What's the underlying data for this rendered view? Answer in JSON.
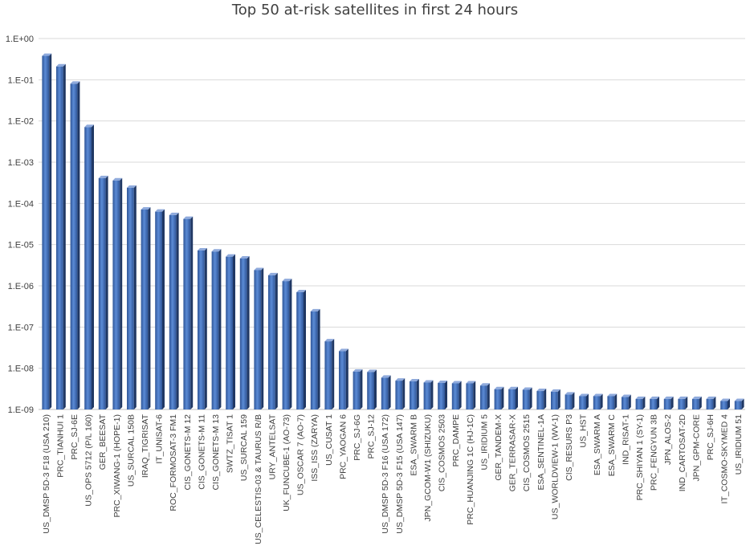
{
  "chart_data": {
    "type": "bar",
    "title": "Top 50 at-risk satellites in first 24 hours",
    "xlabel": "",
    "ylabel": "",
    "yscale": "log",
    "ylim": [
      1e-09,
      1
    ],
    "yticks": [
      "1.E+00",
      "1.E-01",
      "1.E-02",
      "1.E-03",
      "1.E-04",
      "1.E-05",
      "1.E-06",
      "1.E-07",
      "1.E-08",
      "1.E-09"
    ],
    "grid": true,
    "legend": "none",
    "bar_color": "#4472c4",
    "categories": [
      "US_DMSP 5D-3 F18 (USA 210)",
      "PRC_TIANHUI 1",
      "PRC_SJ-6E",
      "US_OPS 5712 (P/L 160)",
      "GER_BEESAT",
      "PRC_XIWANG-1 (HOPE-1)",
      "US_SURCAL 150B",
      "IRAQ_TIGRISAT",
      "IT_UNISAT-6",
      "ROC_FORMOSAT-3 FM1",
      "CIS_GONETS-M 12",
      "CIS_GONETS-M 11",
      "CIS_GONETS-M 13",
      "SWTZ_TISAT 1",
      "US_SURCAL 159",
      "US_CELESTIS-03 & TAURUS R/B",
      "URY_ANTELSAT",
      "UK_FUNCUBE-1 (AO-73)",
      "US_OSCAR 7 (AO-7)",
      "ISS_ISS (ZARYA)",
      "US_CUSAT 1",
      "PRC_YAOGAN 6",
      "PRC_SJ-6G",
      "PRC_SJ-12",
      "US_DMSP 5D-3 F16 (USA 172)",
      "US_DMSP 5D-3 F15 (USA 147)",
      "ESA_SWARM B",
      "JPN_GCOM-W1 (SHIZUKU)",
      "CIS_COSMOS 2503",
      "PRC_DAMPE",
      "PRC_HUANJING 1C (HJ-1C)",
      "US_IRIDIUM 5",
      "GER_TANDEM-X",
      "GER_TERRASAR-X",
      "CIS_COSMOS 2515",
      "ESA_SENTINEL-1A",
      "US_WORLDVIEW-1 (WV-1)",
      "CIS_RESURS P3",
      "US_HST",
      "ESA_SWARM A",
      "ESA_SWARM C",
      "IND_RISAT-1",
      "PRC_SHIYAN 1 (SY-1)",
      "PRC_FENGYUN 3B",
      "JPN_ALOS-2",
      "IND_CARTOSAT-2D",
      "JPN_GPM-CORE",
      "PRC_SJ-6H",
      "IT_COSMO-SKYMED 4",
      "US_IRIDIUM 51"
    ],
    "values": [
      0.38,
      0.21,
      0.08,
      0.0071,
      0.00041,
      0.00036,
      0.00024,
      7.1e-05,
      6.3e-05,
      5.2e-05,
      4.2e-05,
      7.2e-06,
      6.8e-06,
      5.1e-06,
      4.6e-06,
      2.4e-06,
      1.8e-06,
      1.3e-06,
      7e-07,
      2.4e-07,
      4.5e-08,
      2.6e-08,
      8.3e-09,
      8.1e-09,
      5.9e-09,
      5e-09,
      4.8e-09,
      4.5e-09,
      4.4e-09,
      4.3e-09,
      4.3e-09,
      3.8e-09,
      3.1e-09,
      3.1e-09,
      3e-09,
      2.8e-09,
      2.7e-09,
      2.3e-09,
      2.1e-09,
      2.1e-09,
      2.1e-09,
      2e-09,
      1.8e-09,
      1.8e-09,
      1.8e-09,
      1.8e-09,
      1.8e-09,
      1.8e-09,
      1.6e-09,
      1.6e-09
    ]
  }
}
